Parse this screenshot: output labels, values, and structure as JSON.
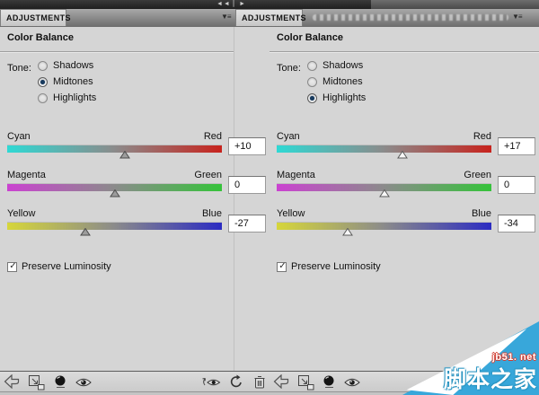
{
  "chrome": {
    "collapse_glyphs": "◄◄ ▏►",
    "panel_menu_icon": "▼≡"
  },
  "panels": [
    {
      "tab_label": "ADJUSTMENTS",
      "title": "Color Balance",
      "tone_label": "Tone:",
      "tone_options": [
        {
          "label": "Shadows",
          "selected": false
        },
        {
          "label": "Midtones",
          "selected": true
        },
        {
          "label": "Highlights",
          "selected": false
        }
      ],
      "sliders": [
        {
          "left_label": "Cyan",
          "right_label": "Red",
          "value": 10,
          "display": "+10"
        },
        {
          "left_label": "Magenta",
          "right_label": "Green",
          "value": 0,
          "display": "0"
        },
        {
          "left_label": "Yellow",
          "right_label": "Blue",
          "value": -27,
          "display": "-27"
        }
      ],
      "preserve_label": "Preserve Luminosity",
      "preserve_checked": true,
      "check_glyph": "✓"
    },
    {
      "tab_label": "ADJUSTMENTS",
      "title": "Color Balance",
      "tone_label": "Tone:",
      "tone_options": [
        {
          "label": "Shadows",
          "selected": false
        },
        {
          "label": "Midtones",
          "selected": false
        },
        {
          "label": "Highlights",
          "selected": true
        }
      ],
      "sliders": [
        {
          "left_label": "Cyan",
          "right_label": "Red",
          "value": 17,
          "display": "+17"
        },
        {
          "left_label": "Magenta",
          "right_label": "Green",
          "value": 0,
          "display": "0"
        },
        {
          "left_label": "Yellow",
          "right_label": "Blue",
          "value": -34,
          "display": "-34"
        }
      ],
      "preserve_label": "Preserve Luminosity",
      "preserve_checked": true,
      "check_glyph": "✓"
    }
  ],
  "slider_range": {
    "min": -100,
    "max": 100
  },
  "footer": {
    "icon_names": [
      "return-arrow",
      "clip-to-layer",
      "adjustment-circle",
      "visibility-eye",
      "previous-state-eye",
      "reset",
      "trash"
    ]
  },
  "colors": {
    "cyan_end": "#2fd9d4",
    "red_end": "#c8231d",
    "magenta_end": "#cb42d1",
    "green_end": "#35c33a",
    "yellow_end": "#d6d63a",
    "blue_end": "#2b2bc2",
    "radio_dot_blue": "#173a5e",
    "watermark_blue": "#38a7da"
  },
  "watermark": {
    "site": "jb51. net",
    "name": "脚本之家"
  }
}
